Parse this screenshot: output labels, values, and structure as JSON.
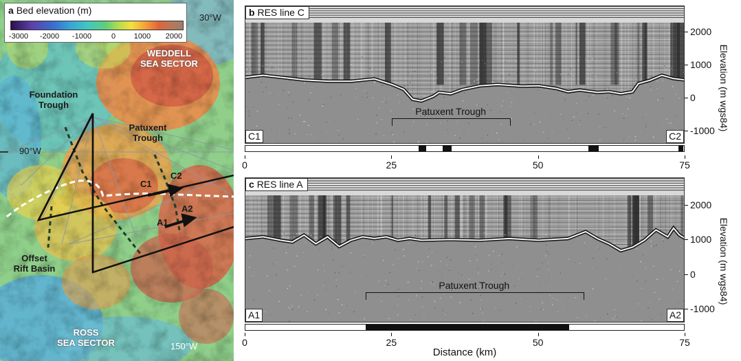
{
  "map": {
    "panel_letter": "a",
    "title": "Bed elevation (m)",
    "colorbar_ticks": [
      "-3000",
      "-2000",
      "-1000",
      "0",
      "1000",
      "2000"
    ],
    "colormap": [
      "#2c0f4f",
      "#5d3fa8",
      "#3a6fcf",
      "#3aa6d6",
      "#42c8c0",
      "#5fcf7a",
      "#b9db4d",
      "#f3e040",
      "#f5a23a",
      "#e0643a",
      "#b8785a",
      "#9b7f6a"
    ],
    "labels": {
      "lon_30w": "30°W",
      "lon_90w": "90°W",
      "lon_150w": "150°W",
      "weddell_line1": "WEDDELL",
      "weddell_line2": "SEA SECTOR",
      "foundation_line1": "Foundation",
      "foundation_line2": "Trough",
      "patuxent_line1": "Patuxent",
      "patuxent_line2": "Trough",
      "offset_line1": "Offset",
      "offset_line2": "Rift Basin",
      "ross_line1": "ROSS",
      "ross_line2": "SEA SECTOR",
      "c1": "C1",
      "c2": "C2",
      "a1": "A1",
      "a2": "A2"
    }
  },
  "panels": [
    {
      "id": "c",
      "panel_letter": "b",
      "title": "RES line C",
      "start_label": "C1",
      "end_label": "C2",
      "trough_label": "Patuxent Trough",
      "trough_range_km": [
        25,
        45
      ],
      "black_segments_km": [
        [
          29.5,
          30.8
        ],
        [
          33.6,
          35.2
        ],
        [
          58.5,
          60.2
        ],
        [
          73.8,
          74.6
        ]
      ],
      "bed_profile": [
        [
          0,
          640
        ],
        [
          3,
          700
        ],
        [
          6,
          640
        ],
        [
          10,
          560
        ],
        [
          14,
          520
        ],
        [
          18,
          520
        ],
        [
          22,
          590
        ],
        [
          25,
          420
        ],
        [
          27,
          270
        ],
        [
          28.5,
          -30
        ],
        [
          30,
          -80
        ],
        [
          32,
          60
        ],
        [
          33,
          180
        ],
        [
          35,
          140
        ],
        [
          37,
          270
        ],
        [
          40,
          380
        ],
        [
          43,
          420
        ],
        [
          47,
          370
        ],
        [
          50,
          380
        ],
        [
          53,
          300
        ],
        [
          55,
          200
        ],
        [
          57,
          250
        ],
        [
          60,
          180
        ],
        [
          62,
          200
        ],
        [
          64,
          140
        ],
        [
          66,
          200
        ],
        [
          67,
          450
        ],
        [
          69,
          550
        ],
        [
          71,
          700
        ],
        [
          73,
          600
        ],
        [
          75,
          560
        ]
      ]
    },
    {
      "id": "a",
      "panel_letter": "c",
      "title": "RES line A",
      "start_label": "A1",
      "end_label": "A2",
      "trough_label": "Patuxent Trough",
      "trough_range_km": [
        20.5,
        57.5
      ],
      "black_segments_km": [
        [
          20.5,
          55.2
        ]
      ],
      "bed_profile": [
        [
          0,
          1050
        ],
        [
          3,
          1100
        ],
        [
          6,
          1000
        ],
        [
          8,
          950
        ],
        [
          10,
          1150
        ],
        [
          12,
          900
        ],
        [
          14,
          1100
        ],
        [
          16,
          820
        ],
        [
          18,
          1000
        ],
        [
          20,
          1100
        ],
        [
          22,
          1050
        ],
        [
          24,
          1100
        ],
        [
          26,
          1000
        ],
        [
          28,
          1050
        ],
        [
          30,
          1000
        ],
        [
          35,
          1020
        ],
        [
          40,
          1000
        ],
        [
          45,
          1050
        ],
        [
          50,
          1000
        ],
        [
          55,
          1050
        ],
        [
          58,
          1250
        ],
        [
          60,
          1050
        ],
        [
          62,
          900
        ],
        [
          64,
          700
        ],
        [
          66,
          800
        ],
        [
          68,
          1000
        ],
        [
          70,
          1300
        ],
        [
          72,
          1100
        ],
        [
          73,
          1350
        ],
        [
          74,
          1150
        ],
        [
          75,
          1050
        ]
      ]
    }
  ],
  "axes": {
    "x_ticks": [
      "0",
      "25",
      "50",
      "75"
    ],
    "x_range_km": [
      0,
      75
    ],
    "x_label": "Distance (km)",
    "y_ticks": [
      "2000",
      "1000",
      "0",
      "-1000"
    ],
    "y_range_m": [
      -1400,
      2800
    ],
    "y_label": "Elevation (m wgs84)"
  }
}
